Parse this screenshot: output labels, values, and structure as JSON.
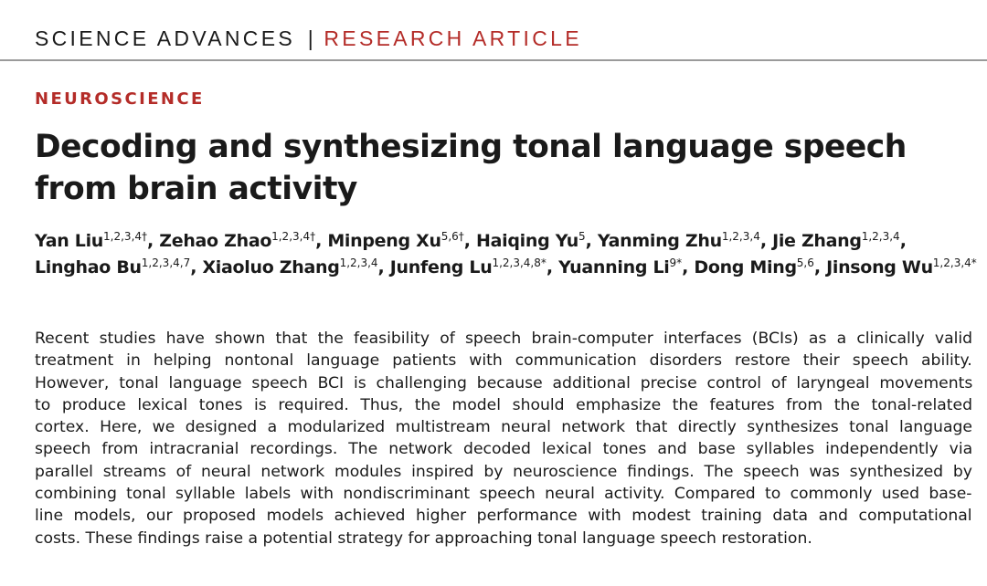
{
  "header": {
    "journal": "SCIENCE ADVANCES",
    "separator": "|",
    "article_type": "RESEARCH ARTICLE"
  },
  "section": "NEUROSCIENCE",
  "title": "Decoding and synthesizing tonal language speech from brain activity",
  "authors": [
    {
      "name": "Yan Liu",
      "aff": "1,2,3,4†",
      "trail": ", "
    },
    {
      "name": "Zehao Zhao",
      "aff": "1,2,3,4†",
      "trail": ", "
    },
    {
      "name": "Minpeng Xu",
      "aff": "5,6†",
      "trail": ", "
    },
    {
      "name": "Haiqing Yu",
      "aff": "5",
      "trail": ", "
    },
    {
      "name": "Yanming Zhu",
      "aff": "1,2,3,4",
      "trail": ", "
    },
    {
      "name": "Jie Zhang",
      "aff": "1,2,3,4",
      "trail": ", "
    },
    {
      "name": "Linghao Bu",
      "aff": "1,2,3,4,7",
      "trail": ", "
    },
    {
      "name": "Xiaoluo Zhang",
      "aff": "1,2,3,4",
      "trail": ", "
    },
    {
      "name": "Junfeng Lu",
      "aff": "1,2,3,4,8*",
      "trail": ", "
    },
    {
      "name": "Yuanning Li",
      "aff": "9*",
      "trail": ", "
    },
    {
      "name": "Dong Ming",
      "aff": "5,6",
      "trail": ", "
    },
    {
      "name": "Jinsong Wu",
      "aff": "1,2,3,4*",
      "trail": ""
    }
  ],
  "abstract_lines": [
    "Recent studies have shown that the feasibility of speech brain-computer interfaces (BCIs) as a clinically valid",
    "treatment in helping nontonal language patients with communication disorders restore their speech ability.",
    "However, tonal language speech BCI is challenging because additional precise control of laryngeal movements",
    "to produce lexical tones is required. Thus, the model should emphasize the features from the tonal-related",
    "cortex. Here, we designed a modularized multistream neural network that directly synthesizes tonal language",
    "speech from intracranial recordings. The network decoded lexical tones and base syllables independently via",
    "parallel streams of neural network modules inspired by neuroscience findings. The speech was synthesized by",
    "combining tonal syllable labels with nondiscriminant speech neural activity. Compared to commonly used base-",
    "line models, our proposed models achieved higher performance with modest training data and computational",
    "costs. These findings raise a potential strategy for approaching tonal language speech restoration."
  ],
  "colors": {
    "accent_red": "#b42c28",
    "text": "#1a1a1a",
    "rule": "#9a9a9a"
  }
}
